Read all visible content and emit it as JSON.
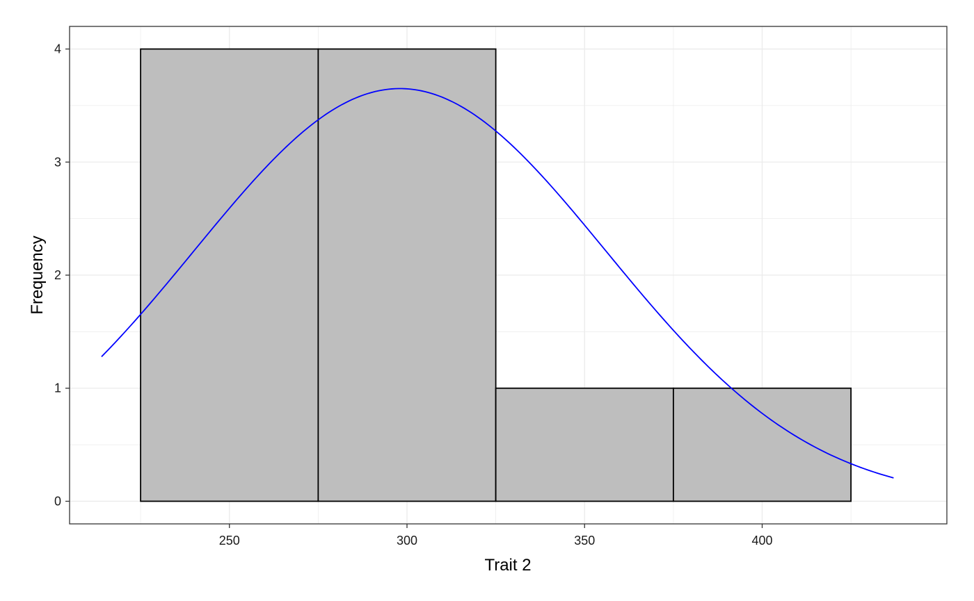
{
  "chart_data": {
    "type": "bar",
    "subtype": "histogram",
    "xlabel": "Trait 2",
    "ylabel": "Frequency",
    "xlim": [
      205,
      452
    ],
    "ylim": [
      -0.2,
      4.2
    ],
    "x_ticks": [
      250,
      300,
      350,
      400
    ],
    "y_ticks": [
      0,
      1,
      2,
      3,
      4
    ],
    "bins": [
      {
        "start": 225,
        "end": 275,
        "count": 4
      },
      {
        "start": 275,
        "end": 325,
        "count": 4
      },
      {
        "start": 325,
        "end": 375,
        "count": 1
      },
      {
        "start": 375,
        "end": 425,
        "count": 1
      }
    ],
    "density_curve": {
      "type": "normal",
      "mean": 298,
      "sd": 58,
      "peak": 3.65,
      "x_range": [
        214,
        437
      ]
    },
    "grid": true,
    "legend": "none",
    "colors": {
      "bar_fill": "#bebebe",
      "bar_stroke": "#000000",
      "curve": "#0000ff",
      "grid": "#ebebeb",
      "panel_border": "#333333"
    }
  }
}
